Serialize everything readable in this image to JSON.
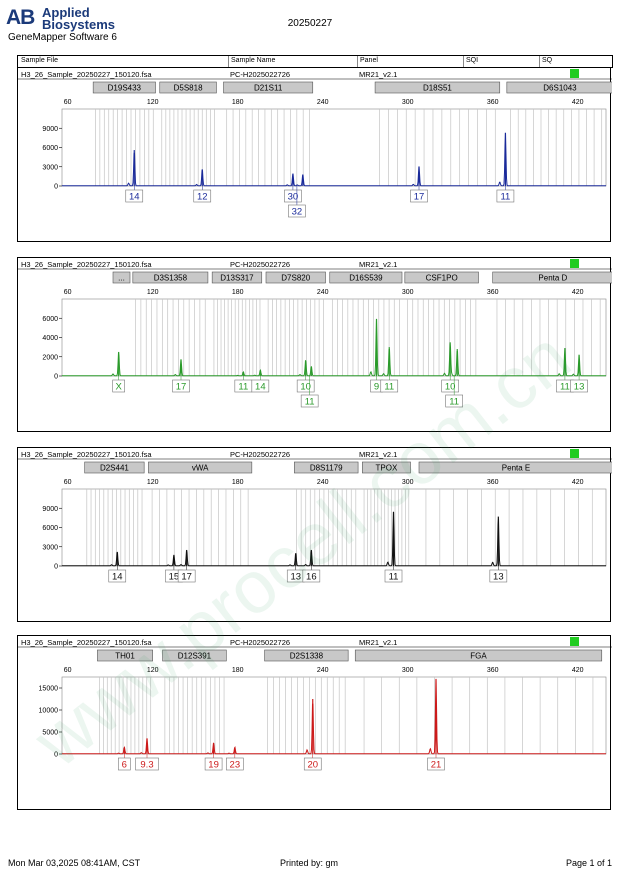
{
  "header": {
    "brand_line1": "Applied",
    "brand_line2": "Biosystems",
    "brand_mark": "AB",
    "software": "GeneMapper Software 6",
    "date": "20250227"
  },
  "columns": {
    "sample_file": "Sample File",
    "sample_name": "Sample Name",
    "panel": "Panel",
    "sqi": "SQI",
    "sq": "SQ"
  },
  "sample": {
    "file": "H3_26_Sample_20250227_150120.fsa",
    "name": "PC-H2025022726",
    "panel": "MR21_v2.1",
    "sq_color": "#22cc22"
  },
  "watermark": "www.procell.com.cn",
  "footer": {
    "printed_on": "Mon Mar 03,2025 08:41AM, CST",
    "printed_by": "Printed by: gm",
    "page": "Page 1 of 1"
  },
  "chart_data": [
    {
      "type": "line",
      "dye": "blue",
      "color": "#1a2a9a",
      "xlim": [
        56,
        440
      ],
      "ylim": [
        0,
        12000
      ],
      "x_ticks": [
        60,
        120,
        180,
        240,
        300,
        360,
        420
      ],
      "y_ticks": [
        0,
        3000,
        6000,
        9000
      ],
      "loci": [
        {
          "name": "D19S433",
          "start": 78,
          "end": 122
        },
        {
          "name": "D5S818",
          "start": 125,
          "end": 165
        },
        {
          "name": "D21S11",
          "start": 170,
          "end": 233
        },
        {
          "name": "D18S51",
          "start": 277,
          "end": 365
        },
        {
          "name": "D6S1043",
          "start": 370,
          "end": 445
        }
      ],
      "peaks": [
        {
          "x": 107,
          "height": 5600,
          "labels": [
            "14"
          ]
        },
        {
          "x": 155,
          "height": 2600,
          "labels": [
            "12"
          ]
        },
        {
          "x": 219,
          "height": 1900,
          "labels": [
            "30",
            "32"
          ]
        },
        {
          "x": 226,
          "height": 1800,
          "labels": []
        },
        {
          "x": 308,
          "height": 3000,
          "labels": [
            "17"
          ]
        },
        {
          "x": 369,
          "height": 8300,
          "labels": [
            "11"
          ]
        }
      ]
    },
    {
      "type": "line",
      "dye": "green",
      "color": "#2a9a2a",
      "xlim": [
        56,
        440
      ],
      "ylim": [
        0,
        8000
      ],
      "x_ticks": [
        60,
        120,
        180,
        240,
        300,
        360,
        420
      ],
      "y_ticks": [
        0,
        2000,
        4000,
        6000
      ],
      "loci": [
        {
          "name": "...",
          "start": 92,
          "end": 104
        },
        {
          "name": "D3S1358",
          "start": 106,
          "end": 159
        },
        {
          "name": "D13S317",
          "start": 162,
          "end": 197
        },
        {
          "name": "D7S820",
          "start": 200,
          "end": 242
        },
        {
          "name": "D16S539",
          "start": 245,
          "end": 296
        },
        {
          "name": "CSF1PO",
          "start": 298,
          "end": 350
        },
        {
          "name": "Penta D",
          "start": 360,
          "end": 445
        }
      ],
      "peaks": [
        {
          "x": 96,
          "height": 2500,
          "labels": [
            "X"
          ]
        },
        {
          "x": 140,
          "height": 1700,
          "labels": [
            "17"
          ]
        },
        {
          "x": 184,
          "height": 400,
          "labels": [
            "11"
          ]
        },
        {
          "x": 196,
          "height": 600,
          "labels": [
            "14"
          ]
        },
        {
          "x": 228,
          "height": 1600,
          "labels": [
            "10",
            "11"
          ]
        },
        {
          "x": 232,
          "height": 1000,
          "labels": []
        },
        {
          "x": 278,
          "height": 5900,
          "labels": [
            "9"
          ]
        },
        {
          "x": 287,
          "height": 3000,
          "labels": [
            "11"
          ]
        },
        {
          "x": 330,
          "height": 3500,
          "labels": [
            "10",
            "11"
          ]
        },
        {
          "x": 335,
          "height": 2800,
          "labels": []
        },
        {
          "x": 411,
          "height": 2900,
          "labels": [
            "11"
          ]
        },
        {
          "x": 421,
          "height": 2200,
          "labels": [
            "13"
          ]
        }
      ]
    },
    {
      "type": "line",
      "dye": "black",
      "color": "#111111",
      "xlim": [
        56,
        440
      ],
      "ylim": [
        0,
        12000
      ],
      "x_ticks": [
        60,
        120,
        180,
        240,
        300,
        360,
        420
      ],
      "y_ticks": [
        0,
        3000,
        6000,
        9000
      ],
      "loci": [
        {
          "name": "D2S441",
          "start": 72,
          "end": 114
        },
        {
          "name": "vWA",
          "start": 117,
          "end": 190
        },
        {
          "name": "D8S1179",
          "start": 220,
          "end": 265
        },
        {
          "name": "TPOX",
          "start": 268,
          "end": 302
        },
        {
          "name": "Penta E",
          "start": 308,
          "end": 445
        }
      ],
      "peaks": [
        {
          "x": 95,
          "height": 2200,
          "labels": [
            "14"
          ]
        },
        {
          "x": 135,
          "height": 1700,
          "labels": [
            "15"
          ]
        },
        {
          "x": 144,
          "height": 2500,
          "labels": [
            "17"
          ]
        },
        {
          "x": 221,
          "height": 2000,
          "labels": [
            "13"
          ]
        },
        {
          "x": 232,
          "height": 2500,
          "labels": [
            "16"
          ]
        },
        {
          "x": 290,
          "height": 8400,
          "labels": [
            "11"
          ]
        },
        {
          "x": 364,
          "height": 7700,
          "labels": [
            "13"
          ]
        }
      ]
    },
    {
      "type": "line",
      "dye": "red",
      "color": "#cc1a1a",
      "xlim": [
        56,
        440
      ],
      "ylim": [
        0,
        17500
      ],
      "x_ticks": [
        60,
        120,
        180,
        240,
        300,
        360,
        420
      ],
      "y_ticks": [
        0,
        5000,
        10000,
        15000
      ],
      "loci": [
        {
          "name": "TH01",
          "start": 81,
          "end": 120
        },
        {
          "name": "D12S391",
          "start": 127,
          "end": 172
        },
        {
          "name": "D2S1338",
          "start": 199,
          "end": 258
        },
        {
          "name": "FGA",
          "start": 263,
          "end": 437
        }
      ],
      "peaks": [
        {
          "x": 100,
          "height": 1500,
          "labels": [
            "6"
          ]
        },
        {
          "x": 116,
          "height": 3500,
          "labels": [
            "9.3"
          ]
        },
        {
          "x": 163,
          "height": 2500,
          "labels": [
            "19"
          ]
        },
        {
          "x": 178,
          "height": 1500,
          "labels": [
            "23"
          ]
        },
        {
          "x": 233,
          "height": 12500,
          "labels": [
            "20"
          ]
        },
        {
          "x": 320,
          "height": 17000,
          "labels": [
            "21"
          ]
        }
      ]
    }
  ]
}
